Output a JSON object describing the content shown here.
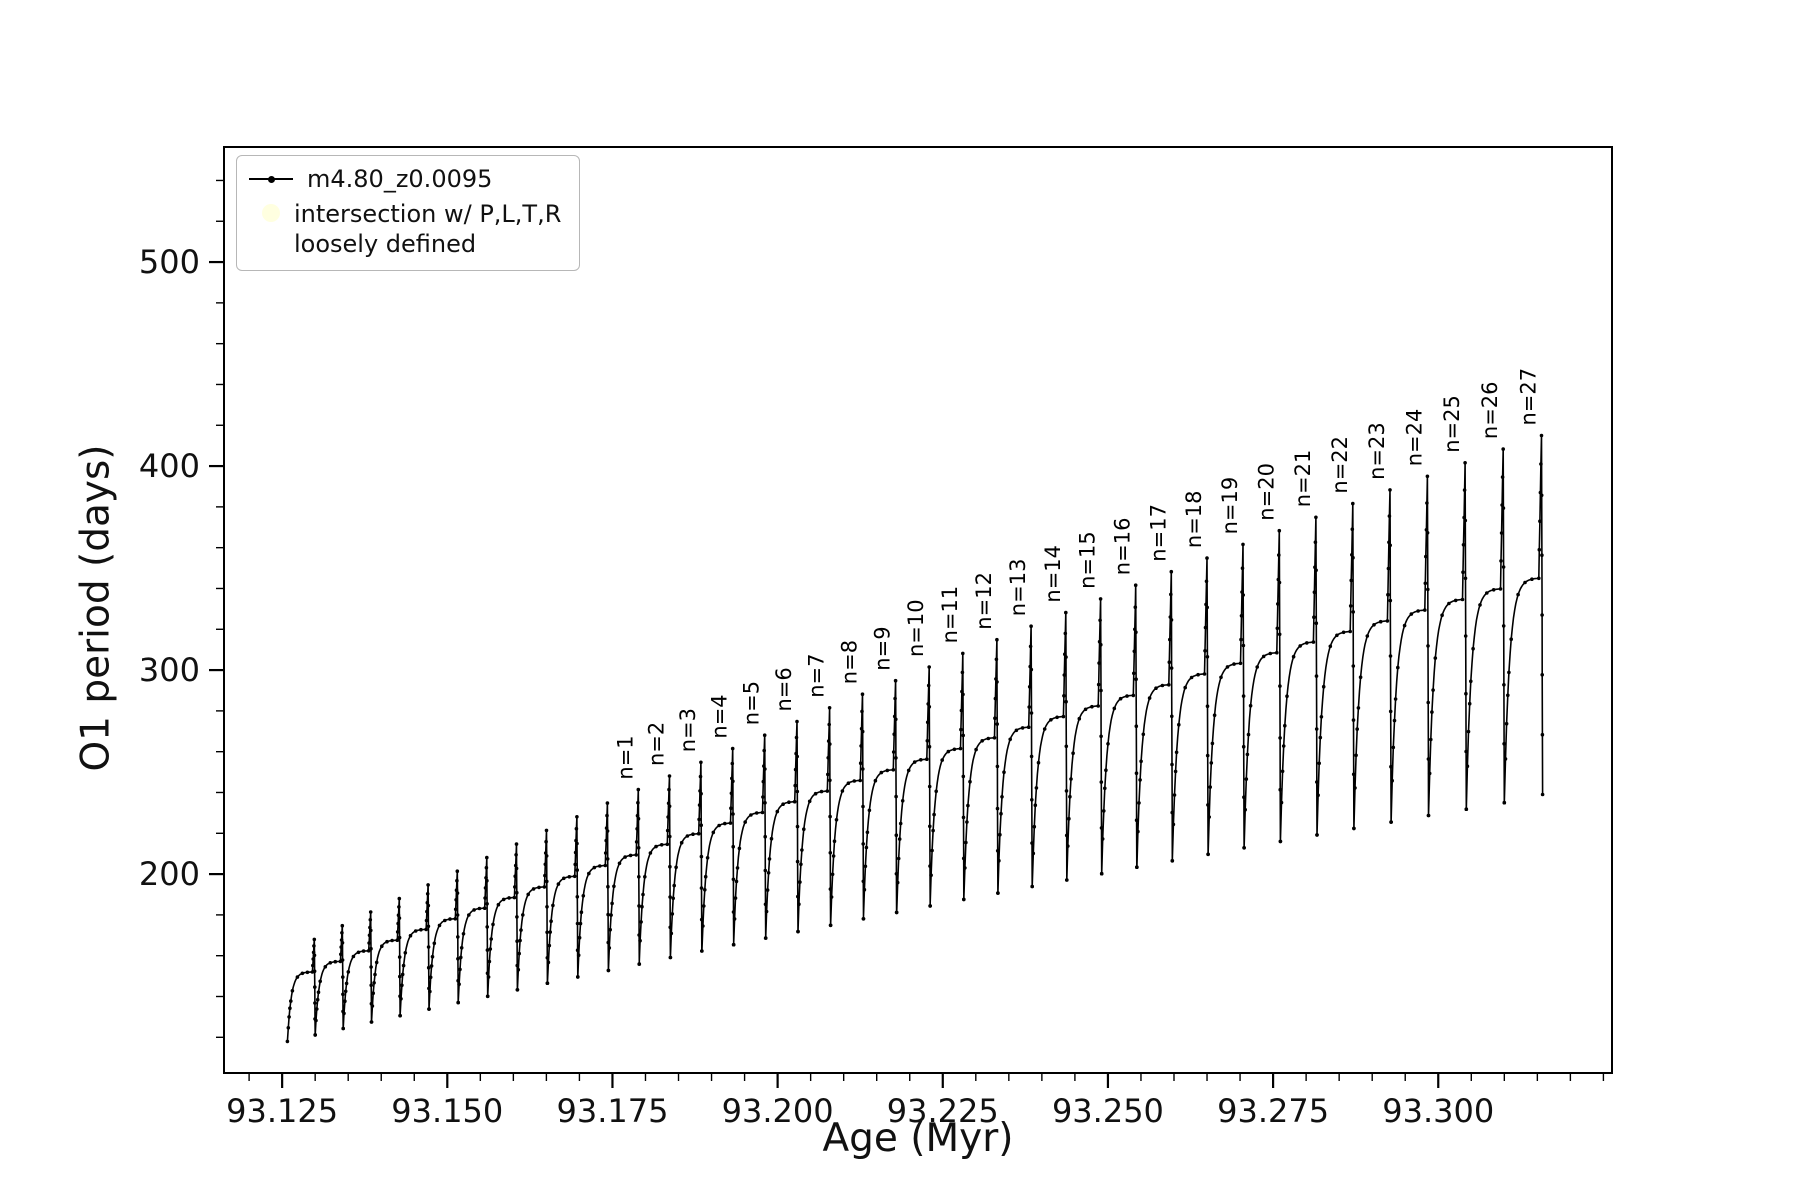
{
  "figure": {
    "background": "#ffffff"
  },
  "legend": {
    "series_label": "m4.80_z0.0095",
    "intersection_label_line1": "intersection w/ P,L,T,R",
    "intersection_label_line2": "loosely defined",
    "intersection_marker_color": "#ffffe0",
    "series_marker_color": "#000000"
  },
  "chart_data": {
    "type": "line",
    "title": "",
    "xlabel": "Age (Myr)",
    "ylabel": "O1 period (days)",
    "xlim": [
      93.1162,
      93.3263
    ],
    "ylim": [
      102.5,
      556.4
    ],
    "xticks": [
      93.125,
      93.15,
      93.175,
      93.2,
      93.225,
      93.25,
      93.275,
      93.3
    ],
    "yticks": [
      200,
      300,
      400,
      500
    ],
    "x_minor_start": 93.12,
    "x_minor_step": 0.005,
    "y_minor_start": 120,
    "y_minor_stop": 540,
    "y_minor_step": 20,
    "grid": false,
    "legend_position": "upper left",
    "series_name": "m4.80_z0.0095",
    "series_color": "#000000",
    "description": "Oscillating O1 pulsation period vs age; each cycle rises steeply, saturates at a plateau, ends in a narrow spike (labeled n=1..n=27 from 93.174 Myr onward) then drops to the next minimum.",
    "cycles": [
      {
        "x_start": 93.1258,
        "width": 0.0042,
        "min": 118.0,
        "plateau": 152.0,
        "peak": 168.0,
        "label": null
      },
      {
        "x_start": 93.13,
        "width": 0.00424,
        "min": 121.2,
        "plateau": 157.2,
        "peak": 174.7,
        "label": null
      },
      {
        "x_start": 93.13424,
        "width": 0.00429,
        "min": 124.3,
        "plateau": 162.4,
        "peak": 181.4,
        "label": null
      },
      {
        "x_start": 93.13853,
        "width": 0.00433,
        "min": 127.5,
        "plateau": 167.6,
        "peak": 188.0,
        "label": null
      },
      {
        "x_start": 93.14286,
        "width": 0.00437,
        "min": 130.6,
        "plateau": 172.9,
        "peak": 194.7,
        "label": null
      },
      {
        "x_start": 93.14723,
        "width": 0.00442,
        "min": 133.8,
        "plateau": 178.1,
        "peak": 201.4,
        "label": null
      },
      {
        "x_start": 93.15165,
        "width": 0.00446,
        "min": 137.0,
        "plateau": 183.3,
        "peak": 208.1,
        "label": null
      },
      {
        "x_start": 93.15611,
        "width": 0.0045,
        "min": 140.1,
        "plateau": 188.5,
        "peak": 214.7,
        "label": null
      },
      {
        "x_start": 93.16061,
        "width": 0.00455,
        "min": 143.3,
        "plateau": 193.7,
        "peak": 221.4,
        "label": null
      },
      {
        "x_start": 93.16516,
        "width": 0.00459,
        "min": 146.5,
        "plateau": 198.9,
        "peak": 228.1,
        "label": null
      },
      {
        "x_start": 93.16975,
        "width": 0.00463,
        "min": 149.6,
        "plateau": 204.2,
        "peak": 234.8,
        "label": null
      },
      {
        "x_start": 93.17438,
        "width": 0.00468,
        "min": 152.8,
        "plateau": 209.4,
        "peak": 241.4,
        "label": "n=1"
      },
      {
        "x_start": 93.17905,
        "width": 0.00472,
        "min": 155.9,
        "plateau": 214.6,
        "peak": 248.1,
        "label": "n=2"
      },
      {
        "x_start": 93.18377,
        "width": 0.00476,
        "min": 159.1,
        "plateau": 219.8,
        "peak": 254.8,
        "label": "n=3"
      },
      {
        "x_start": 93.18854,
        "width": 0.00481,
        "min": 162.3,
        "plateau": 225.0,
        "peak": 261.5,
        "label": "n=4"
      },
      {
        "x_start": 93.19334,
        "width": 0.00485,
        "min": 165.4,
        "plateau": 230.2,
        "peak": 268.1,
        "label": "n=5"
      },
      {
        "x_start": 93.19819,
        "width": 0.00489,
        "min": 168.6,
        "plateau": 235.5,
        "peak": 274.8,
        "label": "n=6"
      },
      {
        "x_start": 93.20308,
        "width": 0.00494,
        "min": 171.8,
        "plateau": 240.7,
        "peak": 281.5,
        "label": "n=7"
      },
      {
        "x_start": 93.20802,
        "width": 0.00498,
        "min": 174.9,
        "plateau": 245.9,
        "peak": 288.2,
        "label": "n=8"
      },
      {
        "x_start": 93.21299,
        "width": 0.00502,
        "min": 178.1,
        "plateau": 251.1,
        "peak": 294.8,
        "label": "n=9"
      },
      {
        "x_start": 93.21802,
        "width": 0.00507,
        "min": 181.2,
        "plateau": 256.3,
        "peak": 301.5,
        "label": "n=10"
      },
      {
        "x_start": 93.22308,
        "width": 0.00511,
        "min": 184.4,
        "plateau": 261.5,
        "peak": 308.2,
        "label": "n=11"
      },
      {
        "x_start": 93.22819,
        "width": 0.00515,
        "min": 187.6,
        "plateau": 266.8,
        "peak": 314.9,
        "label": "n=12"
      },
      {
        "x_start": 93.23334,
        "width": 0.00519,
        "min": 190.7,
        "plateau": 272.0,
        "peak": 321.5,
        "label": "n=13"
      },
      {
        "x_start": 93.23854,
        "width": 0.00524,
        "min": 193.9,
        "plateau": 277.2,
        "peak": 328.2,
        "label": "n=14"
      },
      {
        "x_start": 93.24377,
        "width": 0.00528,
        "min": 197.1,
        "plateau": 282.4,
        "peak": 334.9,
        "label": "n=15"
      },
      {
        "x_start": 93.24905,
        "width": 0.00532,
        "min": 200.2,
        "plateau": 287.6,
        "peak": 341.6,
        "label": "n=16"
      },
      {
        "x_start": 93.25438,
        "width": 0.00537,
        "min": 203.4,
        "plateau": 292.8,
        "peak": 348.2,
        "label": "n=17"
      },
      {
        "x_start": 93.25975,
        "width": 0.00541,
        "min": 206.5,
        "plateau": 298.1,
        "peak": 354.9,
        "label": "n=18"
      },
      {
        "x_start": 93.26516,
        "width": 0.00545,
        "min": 209.7,
        "plateau": 303.3,
        "peak": 361.6,
        "label": "n=19"
      },
      {
        "x_start": 93.27061,
        "width": 0.0055,
        "min": 212.9,
        "plateau": 308.5,
        "peak": 368.3,
        "label": "n=20"
      },
      {
        "x_start": 93.27611,
        "width": 0.00554,
        "min": 216.0,
        "plateau": 313.7,
        "peak": 374.9,
        "label": "n=21"
      },
      {
        "x_start": 93.28165,
        "width": 0.00558,
        "min": 219.2,
        "plateau": 318.9,
        "peak": 381.6,
        "label": "n=22"
      },
      {
        "x_start": 93.28723,
        "width": 0.00563,
        "min": 222.4,
        "plateau": 324.1,
        "peak": 388.3,
        "label": "n=23"
      },
      {
        "x_start": 93.29286,
        "width": 0.00567,
        "min": 225.5,
        "plateau": 329.4,
        "peak": 395.0,
        "label": "n=24"
      },
      {
        "x_start": 93.29853,
        "width": 0.00571,
        "min": 228.7,
        "plateau": 334.6,
        "peak": 401.6,
        "label": "n=25"
      },
      {
        "x_start": 93.30424,
        "width": 0.00576,
        "min": 231.8,
        "plateau": 339.8,
        "peak": 408.3,
        "label": "n=26"
      },
      {
        "x_start": 93.31,
        "width": 0.0058,
        "min": 235.0,
        "plateau": 345.0,
        "peak": 415.0,
        "label": "n=27"
      }
    ]
  }
}
